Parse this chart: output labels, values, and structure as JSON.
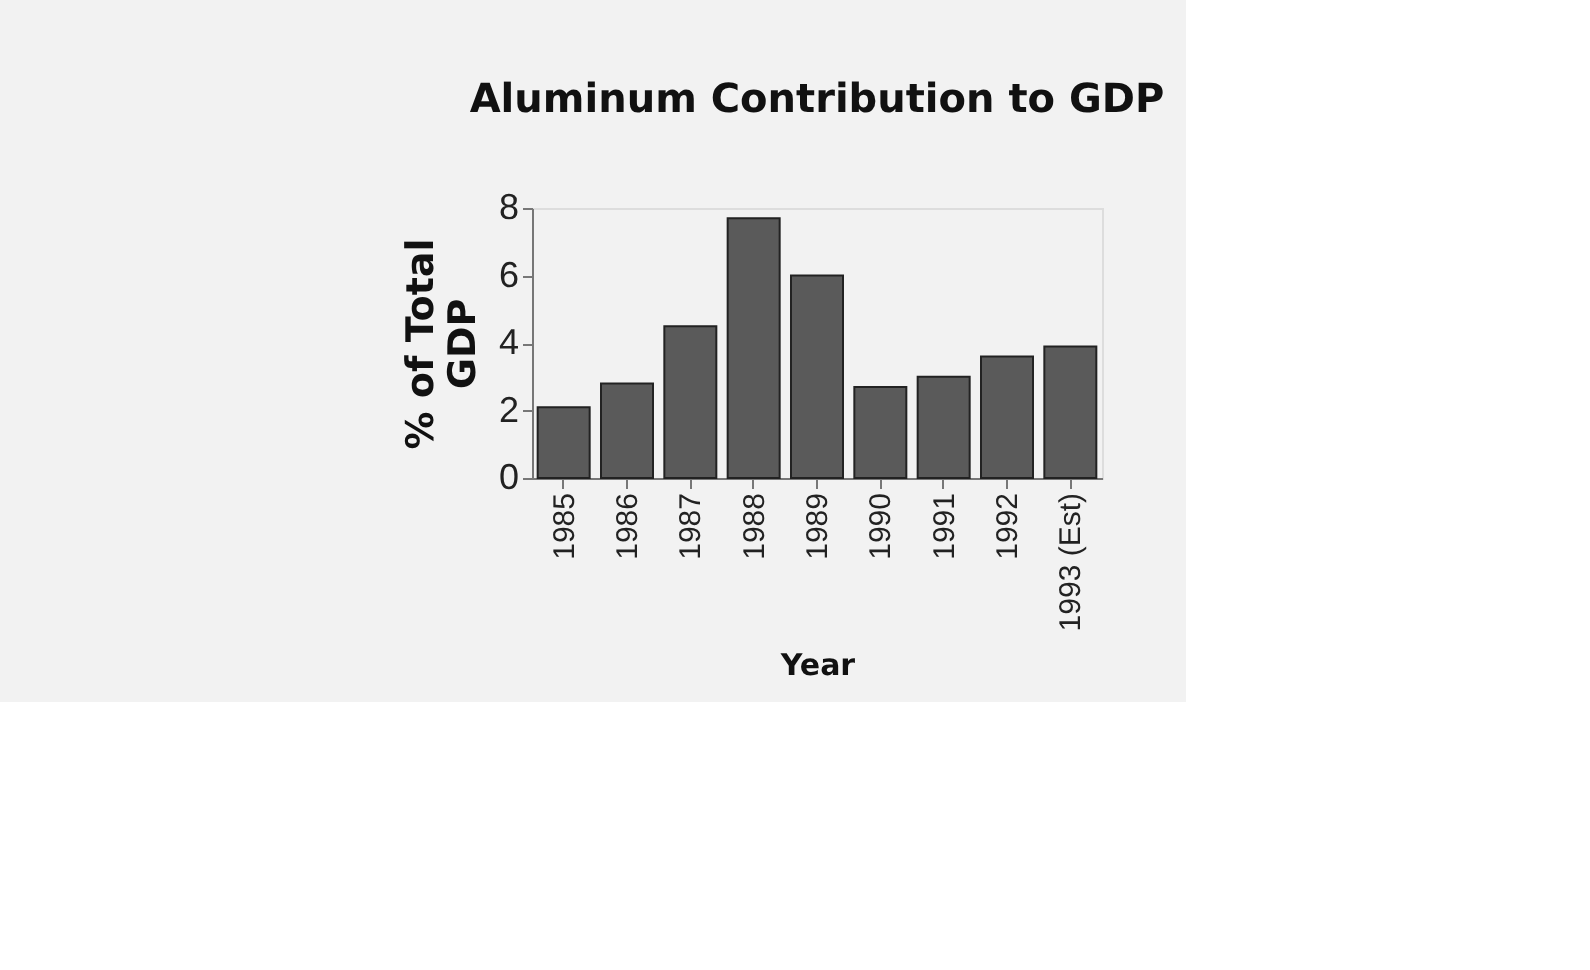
{
  "chart_data": {
    "type": "bar",
    "title": "Aluminum Contribution to GDP",
    "xlabel": "Year",
    "ylabel": "% of Total GDP",
    "categories": [
      "1985",
      "1986",
      "1987",
      "1988",
      "1989",
      "1990",
      "1991",
      "1992",
      "1993 (Est)"
    ],
    "values": [
      2.1,
      2.8,
      4.5,
      7.7,
      6.0,
      2.7,
      3.0,
      3.6,
      3.9
    ],
    "color": "#5a5a5a",
    "ylim": [
      0,
      8
    ],
    "yticks": [
      0,
      2,
      4,
      6,
      8
    ],
    "grid": false
  }
}
